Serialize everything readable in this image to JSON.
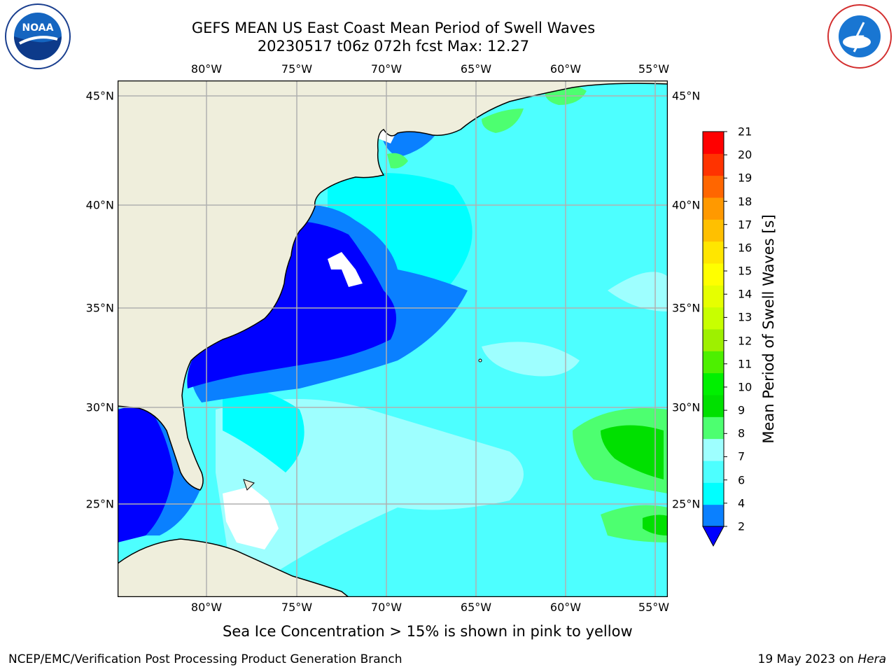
{
  "header": {
    "title": "GEFS MEAN US East Coast Mean Period of Swell Waves",
    "subtitle": "20230517 t06z 072h fcst   Max: 12.27"
  },
  "logos": {
    "left": "noara-logo",
    "right": "nws-logo",
    "noaa_text": "NOAA"
  },
  "map": {
    "lon_labels": [
      "80°W",
      "75°W",
      "70°W",
      "65°W",
      "60°W",
      "55°W"
    ],
    "lat_labels": [
      "45°N",
      "40°N",
      "35°N",
      "30°N",
      "25°N"
    ],
    "colors": {
      "land": "#EFEEDC",
      "cyan": "#00FFFF",
      "light_cyan": "#4DFFFF",
      "pale_cyan": "#9EFFFF",
      "blue": "#0000FF",
      "mid_blue": "#0A80FF",
      "green": "#00E000",
      "light_green": "#4DFF70"
    }
  },
  "colorbar": {
    "label": "Mean Period of Swell Waves [s]",
    "ticks": [
      "2",
      "4",
      "6",
      "7",
      "8",
      "9",
      "10",
      "11",
      "12",
      "13",
      "14",
      "15",
      "16",
      "17",
      "18",
      "19",
      "20",
      "21"
    ],
    "colors": [
      "#0A80FF",
      "#00FFFF",
      "#4DFFFF",
      "#9EFFFF",
      "#4DFF70",
      "#00E000",
      "#00F000",
      "#4DF000",
      "#9EF000",
      "#C8FF00",
      "#E6FF00",
      "#FFFF00",
      "#FFE600",
      "#FFC000",
      "#FF9900",
      "#FF6600",
      "#FF3300",
      "#FF0000"
    ],
    "extend_color": "#0000FF"
  },
  "note": "Sea Ice Concentration > 15% is shown in pink to yellow",
  "footer": {
    "left": "NCEP/EMC/Verification Post Processing Product Generation Branch",
    "date": "19 May 2023 on ",
    "machine": "Hera"
  }
}
